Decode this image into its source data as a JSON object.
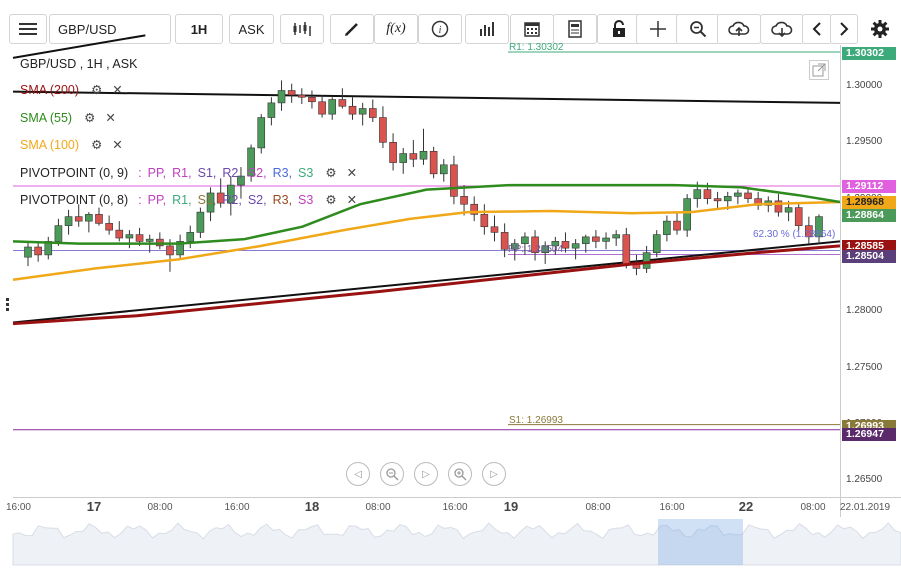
{
  "toolbar": {
    "symbol_value": "GBP/USD",
    "timeframe_label": "1H",
    "price_type_label": "ASK",
    "buttons": [
      "menu-icon",
      "candles-icon",
      "draw-icon",
      "function-icon",
      "info-icon",
      "volume-icon",
      "calendar-icon",
      "template-icon",
      "lock-icon",
      "crosshair-icon",
      "zoom-icon",
      "cloud-upload-icon",
      "cloud-download-icon",
      "prev-icon",
      "next-icon",
      "settings-icon"
    ],
    "function_label": "f(x)"
  },
  "legend": {
    "title": "GBP/USD , 1H , ASK",
    "sma200": "SMA (200)",
    "sma55": "SMA (55)",
    "sma100": "SMA (100)",
    "pivot9_name": "PIVOTPOINT (0, 9)",
    "pivot8_name": "PIVOTPOINT (0, 8)",
    "pivot_sep": ":",
    "pivot_series": [
      "PP,",
      "R1,",
      "S1,",
      "R2,",
      "S2,",
      "R3,",
      "S3"
    ]
  },
  "colors": {
    "sma200": "#9a1111",
    "sma55": "#2e8b1e",
    "sma100": "#f0a818",
    "up": "#4c9a5a",
    "down": "#d9534f",
    "r1": "#3caa7a",
    "s1": "#8a7a3a",
    "r2": "#c040c0"
  },
  "annotations": {
    "r1": "R1: 1.30302",
    "pp": "PP: 1.28504",
    "s1": "S1: 1.26993",
    "fib": "62.30 % (1.28564)"
  },
  "price_axis": {
    "ticks": [
      "1.30000",
      "1.29500",
      "1.29000",
      "1.28500",
      "1.28000",
      "1.27500",
      "1.27000",
      "1.26500"
    ],
    "tags": [
      {
        "label": "1.30302",
        "bg": "#3caa7a",
        "fg": "#ffffff"
      },
      {
        "label": "1.29112",
        "bg": "#e060e0",
        "fg": "#ffffff"
      },
      {
        "label": "1.28968",
        "bg": "#f0a818",
        "fg": "#222222"
      },
      {
        "label": "1.28864",
        "bg": "#4c9a5a",
        "fg": "#ffffff"
      },
      {
        "label": "1.28585",
        "bg": "#9a1111",
        "fg": "#ffffff"
      },
      {
        "label": "1.28504",
        "bg": "#5a3f7a",
        "fg": "#ffffff"
      },
      {
        "label": "1.26993",
        "bg": "#8a7a3a",
        "fg": "#ffffff"
      },
      {
        "label": "1.26947",
        "bg": "#5a2a6a",
        "fg": "#ffffff"
      }
    ]
  },
  "time_axis": {
    "labels": [
      "16:00",
      "17",
      "08:00",
      "16:00",
      "18",
      "08:00",
      "16:00",
      "19",
      "08:00",
      "16:00",
      "22",
      "08:00",
      "22.01.2019"
    ]
  },
  "chart_data": {
    "type": "candlestick",
    "symbol": "GBP/USD",
    "interval": "1H",
    "ylim": [
      1.2625,
      1.3045
    ],
    "candles": [
      [
        1.2848,
        1.2862,
        1.284,
        1.2857
      ],
      [
        1.2857,
        1.2862,
        1.2844,
        1.285
      ],
      [
        1.285,
        1.2866,
        1.2846,
        1.2862
      ],
      [
        1.2862,
        1.2882,
        1.2858,
        1.2876
      ],
      [
        1.2876,
        1.289,
        1.2868,
        1.2884
      ],
      [
        1.2884,
        1.2895,
        1.2875,
        1.288
      ],
      [
        1.288,
        1.2888,
        1.287,
        1.2886
      ],
      [
        1.2886,
        1.2892,
        1.2876,
        1.2878
      ],
      [
        1.2878,
        1.2885,
        1.2868,
        1.2872
      ],
      [
        1.2872,
        1.288,
        1.2862,
        1.2865
      ],
      [
        1.2865,
        1.2872,
        1.2856,
        1.2868
      ],
      [
        1.2868,
        1.2874,
        1.2858,
        1.2862
      ],
      [
        1.2862,
        1.2868,
        1.2852,
        1.2864
      ],
      [
        1.2864,
        1.287,
        1.2855,
        1.2858
      ],
      [
        1.2858,
        1.2864,
        1.2835,
        1.285
      ],
      [
        1.285,
        1.2868,
        1.2846,
        1.2862
      ],
      [
        1.2862,
        1.2876,
        1.2856,
        1.287
      ],
      [
        1.287,
        1.2892,
        1.2865,
        1.2888
      ],
      [
        1.2888,
        1.291,
        1.288,
        1.2905
      ],
      [
        1.2905,
        1.2918,
        1.2892,
        1.2896
      ],
      [
        1.2896,
        1.292,
        1.2885,
        1.2912
      ],
      [
        1.2912,
        1.2928,
        1.29,
        1.292
      ],
      [
        1.292,
        1.2948,
        1.2915,
        1.2945
      ],
      [
        1.2945,
        1.2975,
        1.294,
        1.2972
      ],
      [
        1.2972,
        1.299,
        1.2965,
        1.2985
      ],
      [
        1.2985,
        1.3005,
        1.2978,
        1.2996
      ],
      [
        1.2996,
        1.3002,
        1.2985,
        1.2992
      ],
      [
        1.2992,
        1.2998,
        1.2984,
        1.299
      ],
      [
        1.299,
        1.2996,
        1.298,
        1.2986
      ],
      [
        1.2986,
        1.2992,
        1.2972,
        1.2975
      ],
      [
        1.2975,
        1.299,
        1.297,
        1.2988
      ],
      [
        1.2988,
        1.2998,
        1.298,
        1.2982
      ],
      [
        1.2982,
        1.299,
        1.297,
        1.2975
      ],
      [
        1.2975,
        1.2985,
        1.2965,
        1.298
      ],
      [
        1.298,
        1.2988,
        1.2968,
        1.2972
      ],
      [
        1.2972,
        1.2982,
        1.2945,
        1.295
      ],
      [
        1.295,
        1.2958,
        1.2925,
        1.2932
      ],
      [
        1.2932,
        1.2945,
        1.2922,
        1.294
      ],
      [
        1.294,
        1.2952,
        1.2928,
        1.2935
      ],
      [
        1.2935,
        1.2962,
        1.293,
        1.2942
      ],
      [
        1.2942,
        1.2946,
        1.2918,
        1.2922
      ],
      [
        1.2922,
        1.2935,
        1.2915,
        1.293
      ],
      [
        1.293,
        1.2938,
        1.2895,
        1.2902
      ],
      [
        1.2902,
        1.2912,
        1.2885,
        1.2895
      ],
      [
        1.2895,
        1.2902,
        1.288,
        1.2886
      ],
      [
        1.2886,
        1.2895,
        1.2868,
        1.2875
      ],
      [
        1.2875,
        1.2885,
        1.2862,
        1.287
      ],
      [
        1.287,
        1.2878,
        1.2848,
        1.2855
      ],
      [
        1.2855,
        1.2864,
        1.2845,
        1.286
      ],
      [
        1.286,
        1.287,
        1.285,
        1.2866
      ],
      [
        1.2866,
        1.2872,
        1.2845,
        1.2852
      ],
      [
        1.2852,
        1.2862,
        1.2842,
        1.2858
      ],
      [
        1.2858,
        1.2866,
        1.285,
        1.2862
      ],
      [
        1.2862,
        1.287,
        1.2852,
        1.2856
      ],
      [
        1.2856,
        1.2864,
        1.2846,
        1.286
      ],
      [
        1.286,
        1.2868,
        1.2852,
        1.2866
      ],
      [
        1.2866,
        1.2872,
        1.2856,
        1.2862
      ],
      [
        1.2862,
        1.287,
        1.2855,
        1.2865
      ],
      [
        1.2865,
        1.2872,
        1.2858,
        1.2868
      ],
      [
        1.2868,
        1.2874,
        1.2838,
        1.2842
      ],
      [
        1.2842,
        1.285,
        1.2832,
        1.2838
      ],
      [
        1.2838,
        1.2858,
        1.2834,
        1.2852
      ],
      [
        1.2852,
        1.2872,
        1.2848,
        1.2868
      ],
      [
        1.2868,
        1.2885,
        1.2862,
        1.288
      ],
      [
        1.288,
        1.2888,
        1.2868,
        1.2872
      ],
      [
        1.2872,
        1.2904,
        1.2866,
        1.29
      ],
      [
        1.29,
        1.2915,
        1.2892,
        1.2908
      ],
      [
        1.2908,
        1.2914,
        1.2895,
        1.29
      ],
      [
        1.29,
        1.2906,
        1.289,
        1.2898
      ],
      [
        1.2898,
        1.2906,
        1.289,
        1.2902
      ],
      [
        1.2902,
        1.2908,
        1.2895,
        1.2905
      ],
      [
        1.2905,
        1.291,
        1.2896,
        1.29
      ],
      [
        1.29,
        1.2906,
        1.289,
        1.2894
      ],
      [
        1.2894,
        1.2902,
        1.2888,
        1.2898
      ],
      [
        1.2898,
        1.2904,
        1.2884,
        1.2888
      ],
      [
        1.2888,
        1.2898,
        1.288,
        1.2892
      ],
      [
        1.2892,
        1.2896,
        1.2872,
        1.2876
      ],
      [
        1.2876,
        1.2884,
        1.286,
        1.2866
      ],
      [
        1.2866,
        1.2886,
        1.286,
        1.2884
      ]
    ],
    "indicators": {
      "sma200": [
        [
          0,
          1.2789
        ],
        [
          0.15,
          1.2796
        ],
        [
          0.3,
          1.2807
        ],
        [
          0.45,
          1.2818
        ],
        [
          0.6,
          1.283
        ],
        [
          0.75,
          1.2842
        ],
        [
          0.9,
          1.2852
        ],
        [
          1,
          1.2858
        ]
      ],
      "sma55": [
        [
          0,
          1.2862
        ],
        [
          0.08,
          1.286
        ],
        [
          0.2,
          1.286
        ],
        [
          0.28,
          1.2864
        ],
        [
          0.35,
          1.2875
        ],
        [
          0.42,
          1.2895
        ],
        [
          0.5,
          1.2908
        ],
        [
          0.6,
          1.2912
        ],
        [
          0.7,
          1.2912
        ],
        [
          0.8,
          1.2912
        ],
        [
          0.88,
          1.291
        ],
        [
          0.95,
          1.2903
        ],
        [
          1,
          1.2897
        ]
      ],
      "sma100": [
        [
          0,
          1.2828
        ],
        [
          0.1,
          1.2838
        ],
        [
          0.2,
          1.2846
        ],
        [
          0.3,
          1.2858
        ],
        [
          0.4,
          1.2872
        ],
        [
          0.48,
          1.2882
        ],
        [
          0.55,
          1.2888
        ],
        [
          0.65,
          1.2889
        ],
        [
          0.75,
          1.2887
        ],
        [
          0.82,
          1.2888
        ],
        [
          0.9,
          1.2895
        ],
        [
          1,
          1.2897
        ]
      ]
    },
    "levels": {
      "R1": 1.30302,
      "PP": 1.28504,
      "S1": 1.26993,
      "R2": 1.29112,
      "other": 1.26947,
      "fib_62_3": 1.28564
    },
    "trendlines": [
      {
        "from": [
          0,
          1.279
        ],
        "to": [
          1,
          1.2862
        ]
      },
      {
        "from": [
          0,
          1.2995
        ],
        "to": [
          1,
          1.2985
        ]
      },
      {
        "from": [
          0,
          1.3025
        ],
        "to": [
          0.16,
          1.3045
        ]
      }
    ],
    "x_labels": [
      "17",
      "18",
      "19",
      "22"
    ]
  }
}
